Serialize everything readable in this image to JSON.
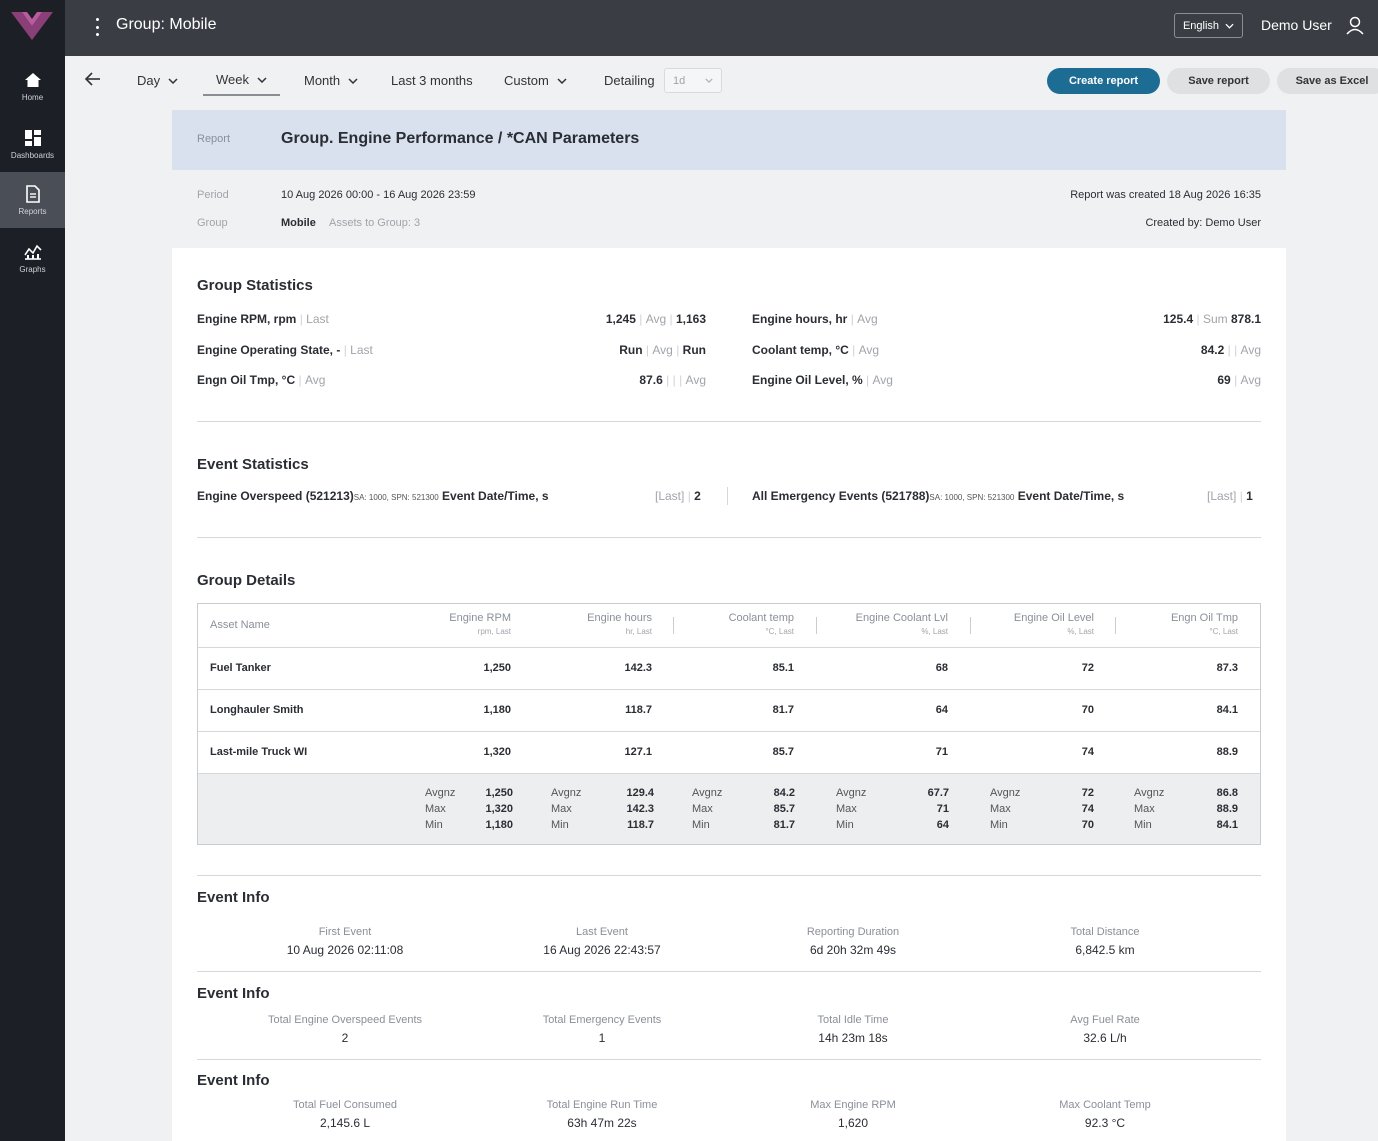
{
  "app": {
    "title": "Group: Mobile",
    "brand_color": "#8b3f78"
  },
  "sidebar": {
    "items": [
      {
        "label": "Home",
        "icon": "home-icon"
      },
      {
        "label": "Dashboards",
        "icon": "dashboards-icon"
      },
      {
        "label": "Reports",
        "icon": "reports-icon",
        "active": true
      },
      {
        "label": "Graphs",
        "icon": "graphs-icon"
      }
    ]
  },
  "header": {
    "language": "English",
    "user_name": "Demo User"
  },
  "toolbar": {
    "periods": [
      "Day",
      "Week",
      "Month",
      "Last 3 months",
      "Custom"
    ],
    "selected_period": "Week",
    "detailing_label": "Detailing",
    "detailing_value": "1d",
    "create_label": "Create report",
    "save_label": "Save report",
    "excel_label": "Save as Excel"
  },
  "report": {
    "label": "Report",
    "title": "Group. Engine Performance / *CAN Parameters",
    "period_label": "Period",
    "period_value": "10 Aug 2026 00:00 - 16 Aug 2026 23:59",
    "group_label": "Group",
    "group_value": "Mobile",
    "assets_text": "Assets to Group: 3",
    "created_at": "Report was created 18 Aug 2026 16:35",
    "created_by": "Created by: Demo User"
  },
  "group_stats": {
    "title": "Group Statistics",
    "left": [
      {
        "name": "Engine RPM, rpm",
        "agg": "Last",
        "v1": "1,245",
        "a2": "Avg",
        "v2": "1,163"
      },
      {
        "name": "Engine Operating State, -",
        "agg": "Last",
        "v1": "Run",
        "a2": "Avg",
        "v2": "Run"
      },
      {
        "name": "Engn Oil Tmp, °C",
        "agg": "Avg",
        "v1": "87.6",
        "a2": "Avg",
        "v2": "|"
      }
    ],
    "right": [
      {
        "name": "Engine hours, hr",
        "agg": "Avg",
        "v1": "125.4",
        "a2": "Sum",
        "v2": "878.1"
      },
      {
        "name": "Coolant temp, °C",
        "agg": "Avg",
        "v1": "84.2",
        "a2": "Avg",
        "v2": "|"
      },
      {
        "name": "Engine Oil Level, %",
        "agg": "Avg",
        "v1": "69",
        "a2": "Avg",
        "v2": ""
      }
    ]
  },
  "event_stats": {
    "title": "Event Statistics",
    "items": [
      {
        "name": "Engine Overspeed (521213)",
        "sub": "SA: 1000, SPN: 521300",
        "suffix": "Event Date/Time, s",
        "agg": "[Last]",
        "value": "2"
      },
      {
        "name": "All Emergency Events (521788)",
        "sub": "SA: 1000, SPN: 521300",
        "suffix": "Event Date/Time, s",
        "agg": "[Last]",
        "value": "1"
      }
    ]
  },
  "group_details": {
    "title": "Group Details",
    "columns": [
      {
        "label": "Asset Name",
        "unit": ""
      },
      {
        "label": "Engine RPM",
        "unit": "rpm, Last"
      },
      {
        "label": "Engine hours",
        "unit": "hr, Last"
      },
      {
        "label": "Coolant temp",
        "unit": "°C, Last"
      },
      {
        "label": "Engine Coolant Lvl",
        "unit": "%, Last"
      },
      {
        "label": "Engine Oil Level",
        "unit": "%, Last"
      },
      {
        "label": "Engn Oil Tmp",
        "unit": "°C, Last"
      }
    ],
    "rows": [
      [
        "Fuel Tanker",
        "1,250",
        "142.3",
        "85.1",
        "68",
        "72",
        "87.3"
      ],
      [
        "Longhauler Smith",
        "1,180",
        "118.7",
        "81.7",
        "64",
        "70",
        "84.1"
      ],
      [
        "Last-mile Truck WI",
        "1,320",
        "127.1",
        "85.7",
        "71",
        "74",
        "88.9"
      ]
    ],
    "agg_labels": [
      "Avgnz",
      "Max",
      "Min"
    ],
    "aggregates": [
      [
        "1,250",
        "1,320",
        "1,180"
      ],
      [
        "129.4",
        "142.3",
        "118.7"
      ],
      [
        "84.2",
        "85.7",
        "81.7"
      ],
      [
        "67.7",
        "71",
        "64"
      ],
      [
        "72",
        "74",
        "70"
      ],
      [
        "86.8",
        "88.9",
        "84.1"
      ]
    ]
  },
  "event_info": [
    {
      "title": "Event Info",
      "items": [
        {
          "label": "First Event",
          "value": "10 Aug 2026 02:11:08"
        },
        {
          "label": "Last Event",
          "value": "16 Aug 2026 22:43:57"
        },
        {
          "label": "Reporting Duration",
          "value": "6d 20h 32m 49s"
        },
        {
          "label": "Total Distance",
          "value": "6,842.5 km"
        }
      ]
    },
    {
      "title": "Event Info",
      "items": [
        {
          "label": "Total Engine Overspeed Events",
          "value": "2"
        },
        {
          "label": "Total Emergency Events",
          "value": "1"
        },
        {
          "label": "Total Idle Time",
          "value": "14h 23m 18s"
        },
        {
          "label": "Avg Fuel Rate",
          "value": "32.6 L/h"
        }
      ]
    },
    {
      "title": "Event Info",
      "items": [
        {
          "label": "Total Fuel Consumed",
          "value": "2,145.6 L"
        },
        {
          "label": "Total Engine Run Time",
          "value": "63h 47m 22s"
        },
        {
          "label": "Max Engine RPM",
          "value": "1,620"
        },
        {
          "label": "Max Coolant Temp",
          "value": "92.3 °C"
        }
      ]
    }
  ]
}
